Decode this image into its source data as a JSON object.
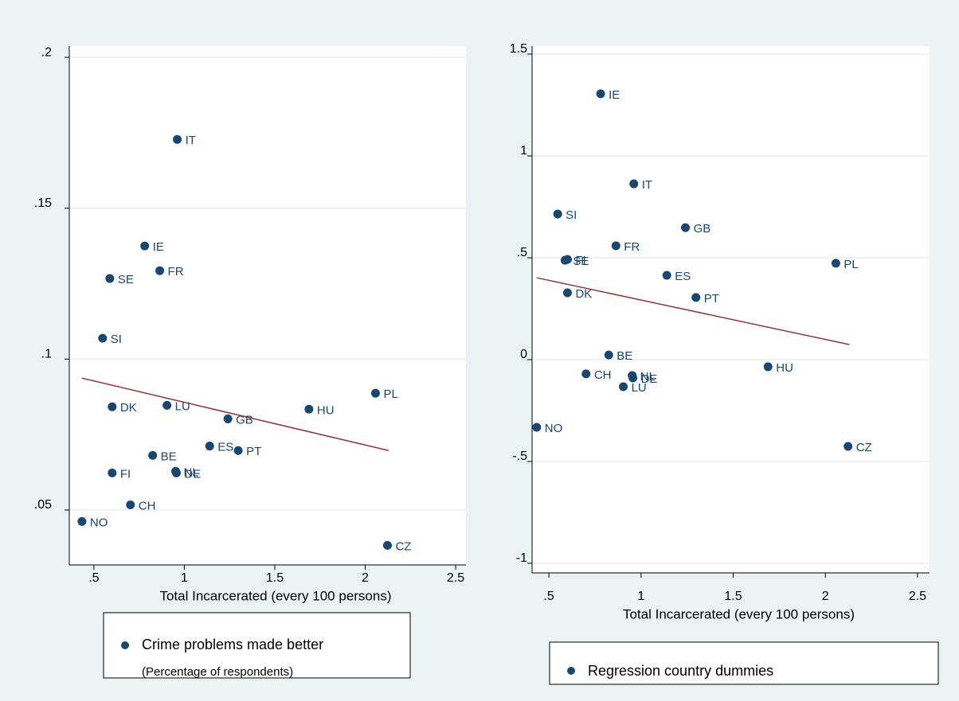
{
  "chart_data": [
    {
      "type": "scatter",
      "x_label": "Total Incarcerated (every 100 persons)",
      "legend_note": "(Percentage of respondents)",
      "xlim": [
        0.364,
        2.557
      ],
      "xticks": [
        {
          "value": 0.5,
          "label": ".5"
        },
        1,
        1.5,
        2,
        2.5
      ],
      "ylim": [
        0.0318,
        0.2037
      ],
      "yticks": [
        {
          "value": 0.05,
          "label": ".05"
        },
        {
          "value": 0.1,
          "label": ".1"
        },
        {
          "value": 0.15,
          "label": ".15"
        },
        {
          "value": 0.2,
          "label": ".2"
        }
      ],
      "grid": true,
      "point_labels": [
        "IT",
        "IE",
        "SE",
        "FR",
        "SI",
        "DK",
        "LU",
        "GB",
        "HU",
        "PL",
        "ES",
        "PT",
        "BE",
        "NL",
        "DE",
        "FI",
        "CH",
        "NO",
        "CZ"
      ],
      "series": [
        {
          "name": "Crime problems made better",
          "color": "#1a476f",
          "x": [
            0.961,
            0.781,
            0.588,
            0.864,
            0.548,
            0.601,
            0.904,
            1.241,
            1.689,
            2.057,
            1.14,
            1.298,
            0.825,
            0.952,
            0.956,
            0.601,
            0.702,
            0.434,
            2.123
          ],
          "values": [
            0.1728,
            0.1375,
            0.1267,
            0.1293,
            0.1069,
            0.0842,
            0.0847,
            0.0802,
            0.0834,
            0.0887,
            0.0712,
            0.0697,
            0.0681,
            0.0628,
            0.0623,
            0.0623,
            0.0517,
            0.0462,
            0.0383
          ]
        }
      ],
      "fit_line": {
        "color": "#90353b",
        "x": [
          0.434,
          2.13
        ],
        "y": [
          0.0937,
          0.0697
        ]
      }
    },
    {
      "type": "scatter",
      "x_label": "Total Incarcerated (every 100 persons)",
      "xlim": [
        0.409,
        2.565
      ],
      "xticks": [
        {
          "value": 0.5,
          "label": ".5"
        },
        1,
        1.5,
        2,
        2.5
      ],
      "ylim": [
        -1.047,
        1.539
      ],
      "yticks": [
        -1,
        {
          "value": -0.5,
          "label": "-.5"
        },
        0,
        {
          "value": 0.5,
          "label": ".5"
        },
        1,
        1.5
      ],
      "grid": true,
      "point_labels": [
        "IE",
        "IT",
        "SI",
        "GB",
        "FR",
        "FI",
        "SE",
        "PL",
        "ES",
        "DK",
        "PT",
        "BE",
        "HU",
        "CH",
        "NL",
        "DE",
        "LU",
        "NO",
        "CZ"
      ],
      "series": [
        {
          "name": "Regression country dummies",
          "color": "#1a476f",
          "x": [
            0.781,
            0.961,
            0.548,
            1.241,
            0.864,
            0.601,
            0.588,
            2.057,
            1.14,
            0.601,
            1.298,
            0.825,
            1.689,
            0.702,
            0.952,
            0.956,
            0.904,
            0.434,
            2.123
          ],
          "values": [
            1.305,
            0.863,
            0.715,
            0.648,
            0.559,
            0.492,
            0.488,
            0.473,
            0.414,
            0.328,
            0.305,
            0.023,
            -0.035,
            -0.07,
            -0.078,
            -0.09,
            -0.133,
            -0.332,
            -0.426
          ]
        }
      ],
      "fit_line": {
        "color": "#90353b",
        "x": [
          0.434,
          2.13
        ],
        "y": [
          0.402,
          0.074
        ]
      }
    }
  ]
}
